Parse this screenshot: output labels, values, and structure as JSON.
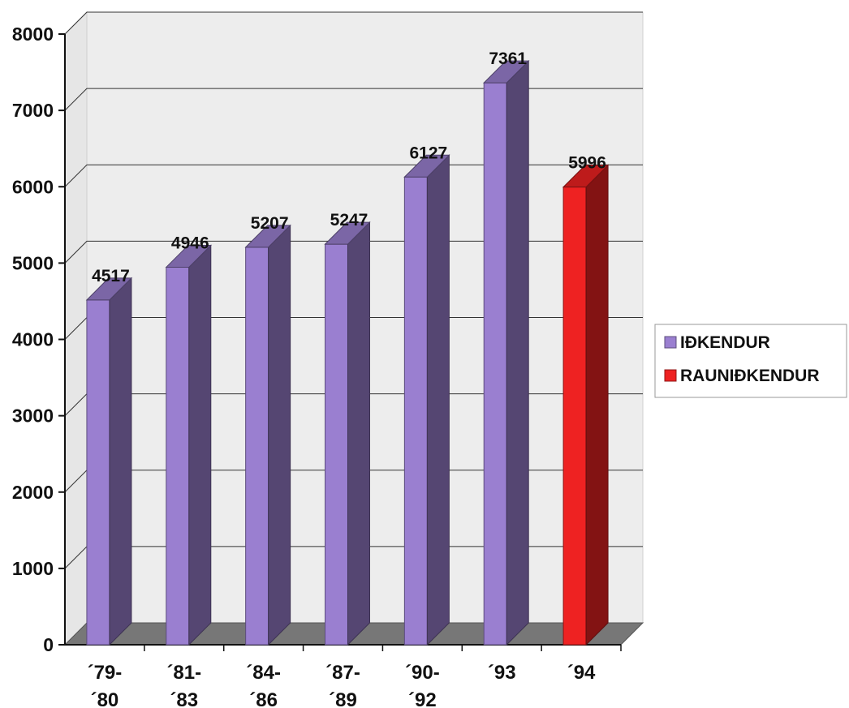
{
  "chart_data": {
    "type": "bar",
    "title": "",
    "xlabel": "",
    "ylabel": "",
    "categories": [
      "´79-\n´80",
      "´81-\n´83",
      "´84-\n´86",
      "´87-\n´89",
      "´90-\n´92",
      "´93",
      "´94"
    ],
    "series": [
      {
        "name": "IÐKENDUR",
        "values": [
          4517,
          4946,
          5207,
          5247,
          6127,
          7361,
          null
        ],
        "color": "#9a7fd0"
      },
      {
        "name": "RAUNIÐKENDUR",
        "values": [
          null,
          null,
          null,
          null,
          null,
          null,
          5996
        ],
        "color": "#ee2222"
      }
    ],
    "data_labels": [
      "4517",
      "4946",
      "5207",
      "5247",
      "6127",
      "7361",
      "5996"
    ],
    "y_ticks": [
      "0",
      "1000",
      "2000",
      "3000",
      "4000",
      "5000",
      "6000",
      "7000",
      "8000"
    ],
    "ylim": [
      0,
      8000
    ],
    "grid": true,
    "legend_position": "right",
    "style": "3d-columns"
  }
}
